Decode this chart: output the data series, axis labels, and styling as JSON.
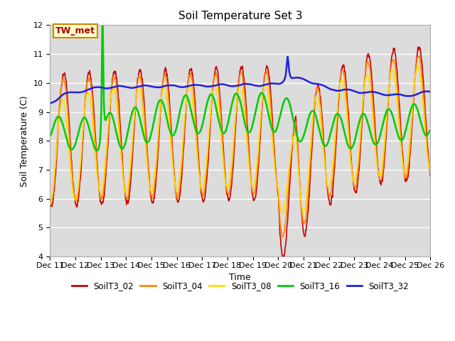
{
  "title": "Soil Temperature Set 3",
  "xlabel": "Time",
  "ylabel": "Soil Temperature (C)",
  "ylim": [
    4.0,
    12.0
  ],
  "yticks": [
    4.0,
    5.0,
    6.0,
    7.0,
    8.0,
    9.0,
    10.0,
    11.0,
    12.0
  ],
  "bg_color": "#dcdcdc",
  "annotation_text": "TW_met",
  "annotation_box_color": "#ffffcc",
  "annotation_text_color": "#aa0000",
  "annotation_edge_color": "#cc8800",
  "legend_labels": [
    "SoilT3_02",
    "SoilT3_04",
    "SoilT3_08",
    "SoilT3_16",
    "SoilT3_32"
  ],
  "line_colors": [
    "#cc0000",
    "#ff8800",
    "#ffdd00",
    "#00cc00",
    "#2222dd"
  ],
  "line_widths": [
    1.2,
    1.2,
    1.2,
    1.8,
    1.8
  ],
  "n_days": 15,
  "samples_per_day": 144,
  "xtick_labels": [
    "Dec 11",
    "Dec 12",
    "Dec 13",
    "Dec 14",
    "Dec 15",
    "Dec 16",
    "Dec 17",
    "Dec 18",
    "Dec 19",
    "Dec 20",
    "Dec 21",
    "Dec 22",
    "Dec 23",
    "Dec 24",
    "Dec 25",
    "Dec 26"
  ],
  "title_fontsize": 11,
  "axis_fontsize": 9,
  "tick_fontsize": 8
}
